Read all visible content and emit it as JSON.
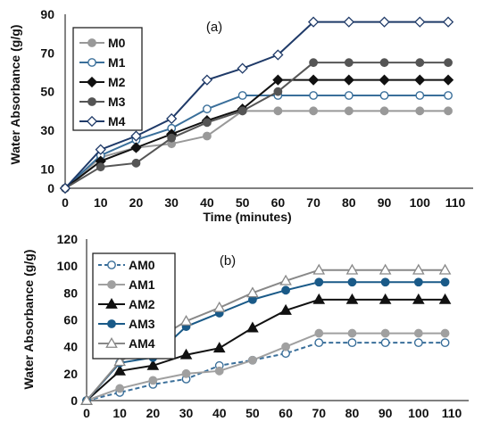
{
  "chart_data": [
    {
      "type": "line",
      "title": "(a)",
      "xlabel": "Time (minutes)",
      "ylabel": "Water Absorbance (g/g)",
      "x_ticks": [
        "0",
        "10",
        "20",
        "30",
        "40",
        "50",
        "60",
        "70",
        "80",
        "90",
        "100",
        "110"
      ],
      "y_ticks": [
        "0",
        "10",
        "30",
        "50",
        "70",
        "90"
      ],
      "xlim": [
        0,
        110
      ],
      "ylim": [
        0,
        90
      ],
      "grid": false,
      "legend_position": "top-left",
      "x": [
        0,
        10,
        20,
        30,
        40,
        50,
        60,
        70,
        80,
        90,
        100,
        108
      ],
      "series": [
        {
          "name": "M0",
          "color": "#999999",
          "marker": "circle-filled",
          "values": [
            0,
            16,
            21,
            23,
            27,
            40,
            40,
            40,
            40,
            40,
            40,
            40
          ]
        },
        {
          "name": "M1",
          "color": "#3a6f9a",
          "marker": "circle-open",
          "values": [
            0,
            17,
            25,
            31,
            41,
            48,
            48,
            48,
            48,
            48,
            48,
            48
          ]
        },
        {
          "name": "M2",
          "color": "#111111",
          "marker": "diamond-filled",
          "values": [
            0,
            14,
            21,
            28,
            35,
            41,
            56,
            56,
            56,
            56,
            56,
            56
          ]
        },
        {
          "name": "M3",
          "color": "#555555",
          "marker": "circle-filled",
          "values": [
            0,
            11,
            13,
            26,
            34,
            40,
            50,
            65,
            65,
            65,
            65,
            65
          ]
        },
        {
          "name": "M4",
          "color": "#1f3a68",
          "marker": "diamond-open",
          "values": [
            0,
            20,
            27,
            36,
            56,
            62,
            69,
            86,
            86,
            86,
            86,
            86
          ]
        }
      ]
    },
    {
      "type": "line",
      "title": "(b)",
      "xlabel": "",
      "ylabel": "Water Absorbance (g/g)",
      "x_ticks": [
        "0",
        "10",
        "20",
        "30",
        "40",
        "50",
        "60",
        "70",
        "80",
        "90",
        "100",
        "110"
      ],
      "y_ticks": [
        "0",
        "20",
        "40",
        "60",
        "80",
        "100",
        "120"
      ],
      "xlim": [
        0,
        110
      ],
      "ylim": [
        0,
        120
      ],
      "grid": false,
      "legend_position": "top-left",
      "x": [
        0,
        10,
        20,
        30,
        40,
        50,
        60,
        70,
        80,
        90,
        100,
        108
      ],
      "series": [
        {
          "name": "AM0",
          "color": "#3a6f9a",
          "dashed": true,
          "marker": "circle-open",
          "values": [
            0,
            6,
            12,
            16,
            26,
            30,
            35,
            43,
            43,
            43,
            43,
            43
          ]
        },
        {
          "name": "AM1",
          "color": "#a0a0a0",
          "marker": "circle-filled",
          "values": [
            0,
            9,
            15,
            20,
            22,
            30,
            40,
            50,
            50,
            50,
            50,
            50
          ]
        },
        {
          "name": "AM2",
          "color": "#111111",
          "marker": "triangle-filled",
          "values": [
            0,
            22,
            26,
            34,
            39,
            54,
            67,
            75,
            75,
            75,
            75,
            75
          ]
        },
        {
          "name": "AM3",
          "color": "#1a5a88",
          "marker": "circle-filled",
          "values": [
            0,
            28,
            32,
            55,
            65,
            75,
            82,
            88,
            88,
            88,
            88,
            88
          ]
        },
        {
          "name": "AM4",
          "color": "#888888",
          "marker": "triangle-open",
          "values": [
            0,
            29,
            44,
            59,
            69,
            80,
            89,
            97,
            97,
            97,
            97,
            97
          ]
        }
      ]
    }
  ]
}
